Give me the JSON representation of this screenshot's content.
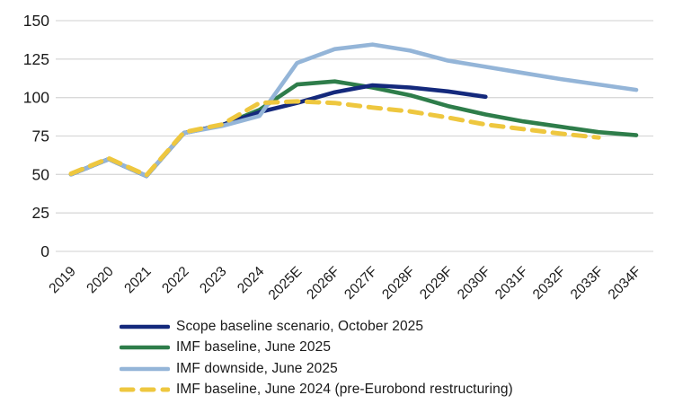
{
  "chart_data": {
    "type": "line",
    "title": "",
    "xlabel": "",
    "ylabel": "",
    "ylim": [
      0,
      150
    ],
    "y_ticks": [
      0,
      25,
      50,
      75,
      100,
      125,
      150
    ],
    "grid": "horizontal",
    "gridline_color": "#d9d9d9",
    "legend_position": "bottom-left",
    "categories": [
      "2019",
      "2020",
      "2021",
      "2022",
      "2023",
      "2024",
      "2025E",
      "2026F",
      "2027F",
      "2028F",
      "2029F",
      "2030F",
      "2031F",
      "2032F",
      "2033F",
      "2034F"
    ],
    "series": [
      {
        "name": "Scope baseline scenario, October 2025",
        "color": "#14297c",
        "dash": false,
        "values": [
          50,
          60,
          49,
          77,
          82,
          90.5,
          96.5,
          103.5,
          108,
          106.5,
          104,
          100.5,
          null,
          null,
          null,
          null
        ]
      },
      {
        "name": "IMF baseline, June 2025",
        "color": "#2e7d4a",
        "dash": false,
        "values": [
          50,
          60,
          49,
          77,
          82,
          92,
          108.5,
          110.5,
          106.5,
          101.5,
          94.5,
          89,
          84.5,
          81,
          77.5,
          75.5
        ]
      },
      {
        "name": "IMF downside, June 2025",
        "color": "#94b5d8",
        "dash": false,
        "values": [
          50,
          60,
          49,
          77,
          81.5,
          88,
          122.5,
          131.5,
          134.5,
          130.5,
          124,
          120,
          116,
          112,
          108.5,
          105
        ]
      },
      {
        "name": "IMF baseline, June 2024 (pre-Eurobond restructuring)",
        "color": "#eec73f",
        "dash": true,
        "values": [
          50.5,
          60.5,
          49.5,
          77.5,
          82.5,
          96.5,
          97.5,
          96.5,
          93.5,
          91,
          87,
          82.5,
          79.5,
          76.5,
          74,
          null
        ]
      }
    ]
  }
}
